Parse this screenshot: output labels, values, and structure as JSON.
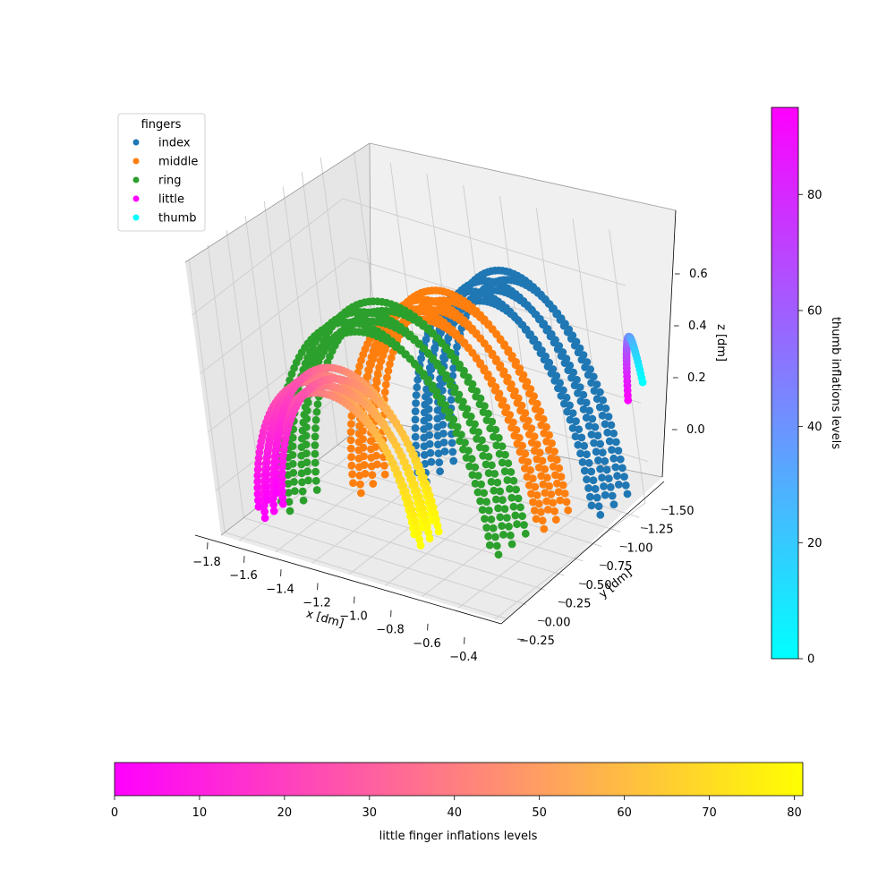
{
  "chart_data": {
    "type": "scatter",
    "projection": "3d",
    "x_label": "x [dm]",
    "y_label": "y [dm]",
    "z_label": "z [dm]",
    "x_ticks": [
      "−1.8",
      "−1.6",
      "−1.4",
      "−1.2",
      "−1.0",
      "−0.8",
      "−0.6",
      "−0.4"
    ],
    "y_ticks": [
      "−0.25",
      "0.00",
      "0.25",
      "0.50",
      "0.75",
      "1.00",
      "1.25",
      "1.50"
    ],
    "z_ticks": [
      "0.0",
      "0.2",
      "0.4",
      "0.6"
    ],
    "x_range": [
      -1.9,
      -0.35
    ],
    "y_range": [
      -0.3,
      1.7
    ],
    "z_range": [
      -0.15,
      0.78
    ],
    "grid": true,
    "legend": {
      "title": "fingers",
      "placement": "top-left",
      "entries": [
        {
          "label": "index",
          "color": "#1f77b4"
        },
        {
          "label": "middle",
          "color": "#ff7f0e"
        },
        {
          "label": "ring",
          "color": "#2ca02c"
        },
        {
          "label": "little",
          "color": "#ff00ff"
        },
        {
          "label": "thumb",
          "color": "#00ffff"
        }
      ]
    },
    "series": [
      {
        "name": "index",
        "color": "#1f77b4",
        "x_span": [
          -1.25,
          -0.4
        ],
        "y_center": 1.15,
        "z_peak": 0.62,
        "z_base": -0.05,
        "thickness": 0.45
      },
      {
        "name": "middle",
        "color": "#ff7f0e",
        "x_span": [
          -1.45,
          -0.55
        ],
        "y_center": 0.75,
        "z_peak": 0.6,
        "z_base": -0.05,
        "thickness": 0.4
      },
      {
        "name": "ring",
        "color": "#2ca02c",
        "x_span": [
          -1.72,
          -0.68
        ],
        "y_center": 0.45,
        "z_peak": 0.58,
        "z_base": -0.1,
        "thickness": 0.45
      },
      {
        "name": "little",
        "colormap": "spring",
        "x_span": [
          -1.7,
          -0.95
        ],
        "y_center": 0.05,
        "z_peak": 0.42,
        "z_base": -0.05,
        "thickness": 0.3
      },
      {
        "name": "thumb",
        "colormap": "cool",
        "x": [
          -0.35,
          -0.3
        ],
        "y_center": 1.55,
        "z_range": [
          0.15,
          0.45
        ]
      }
    ],
    "colorbars": [
      {
        "label": "thumb inflations levels",
        "colormap": "cool",
        "range": [
          0,
          95
        ],
        "ticks": [
          "0",
          "20",
          "40",
          "60",
          "80"
        ],
        "orientation": "vertical",
        "placement": "right"
      },
      {
        "label": "little finger inflations levels",
        "colormap": "spring",
        "range": [
          0,
          81
        ],
        "ticks": [
          "0",
          "10",
          "20",
          "30",
          "40",
          "50",
          "60",
          "70",
          "80"
        ],
        "orientation": "horizontal",
        "placement": "bottom"
      }
    ]
  }
}
